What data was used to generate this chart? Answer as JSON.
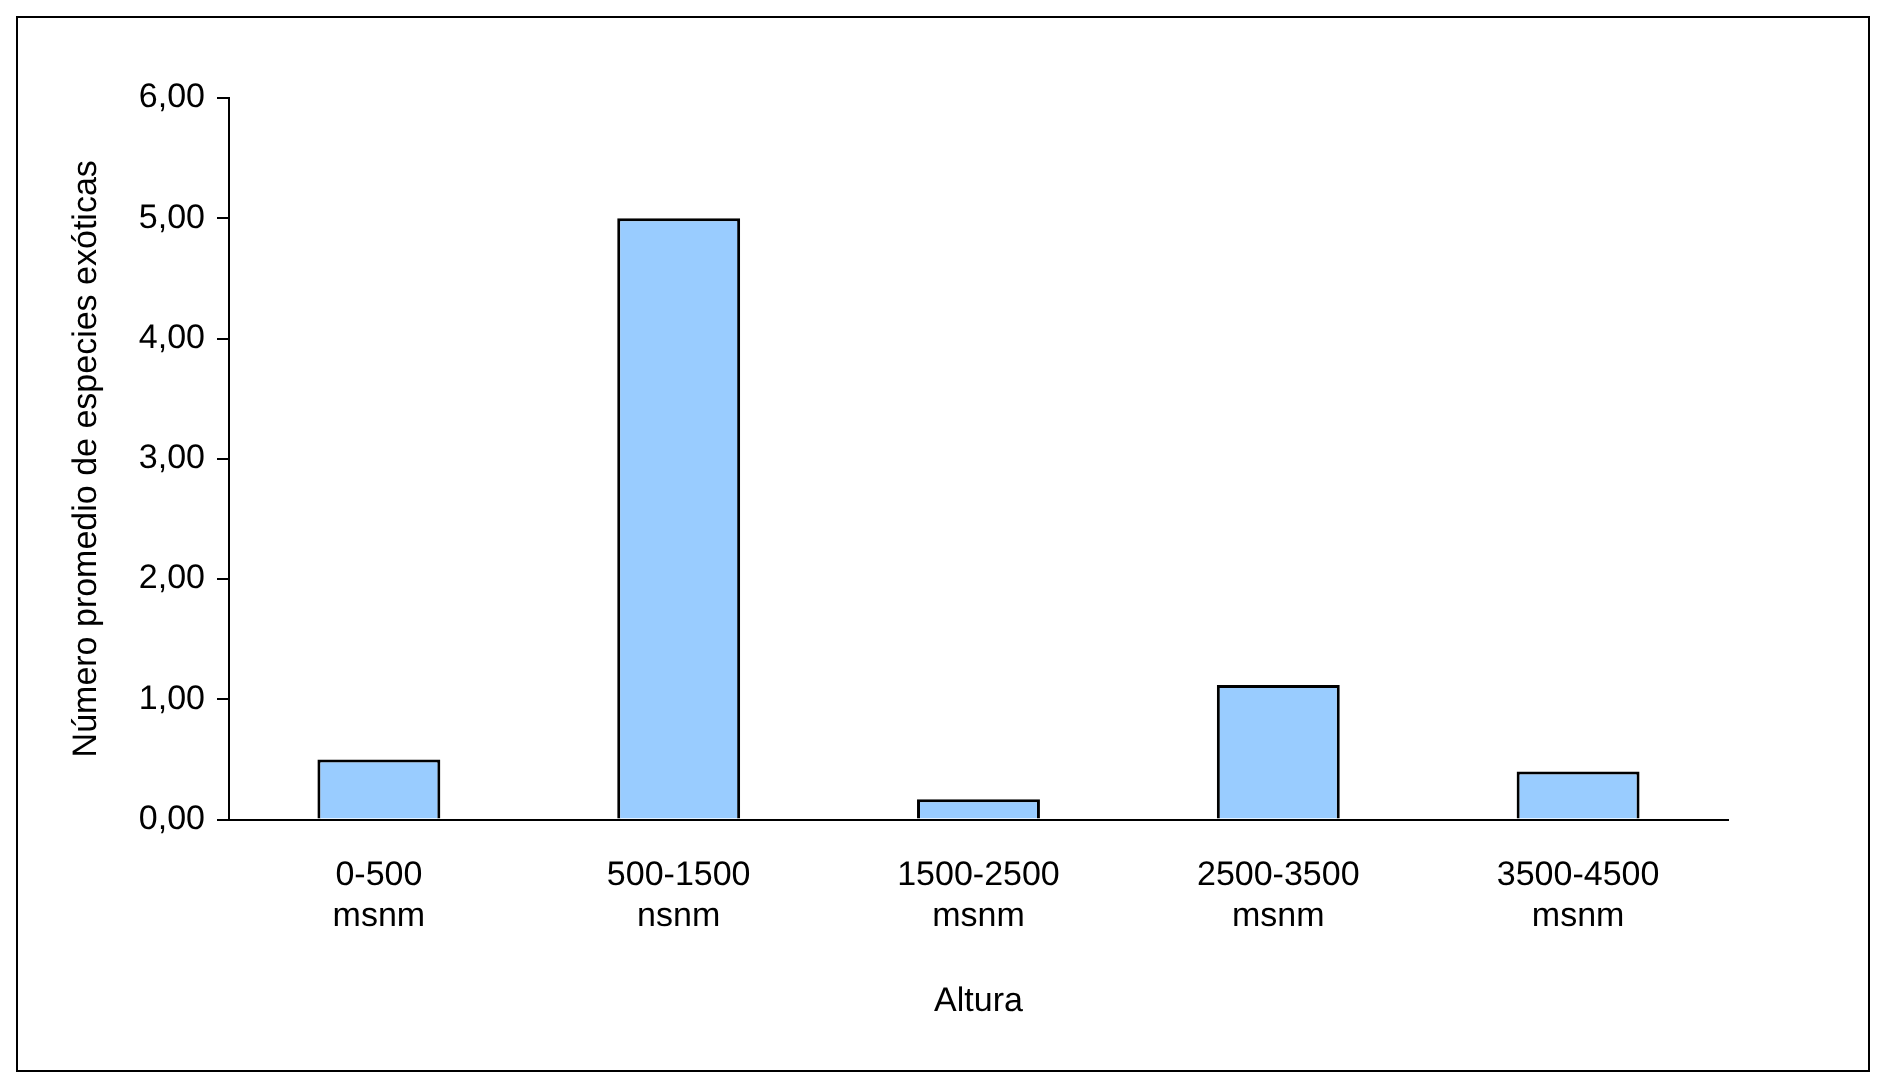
{
  "chart_data": {
    "type": "bar",
    "xlabel": "Altura",
    "ylabel": "Número promedio de especies exóticas",
    "categories": [
      "0-500 msnm",
      "500-1500 nsnm",
      "1500-2500 msnm",
      "2500-3500 msnm",
      "3500-4500 msnm"
    ],
    "values": [
      0.5,
      5.0,
      0.17,
      1.12,
      0.4
    ],
    "color": "#99ccff",
    "ylim": [
      0,
      6
    ],
    "yticks": [
      {
        "value": 0,
        "label": "0,00"
      },
      {
        "value": 1,
        "label": "1,00"
      },
      {
        "value": 2,
        "label": "2,00"
      },
      {
        "value": 3,
        "label": "3,00"
      },
      {
        "value": 4,
        "label": "4,00"
      },
      {
        "value": 5,
        "label": "5,00"
      },
      {
        "value": 6,
        "label": "6,00"
      }
    ],
    "grid": false,
    "legend": false
  }
}
